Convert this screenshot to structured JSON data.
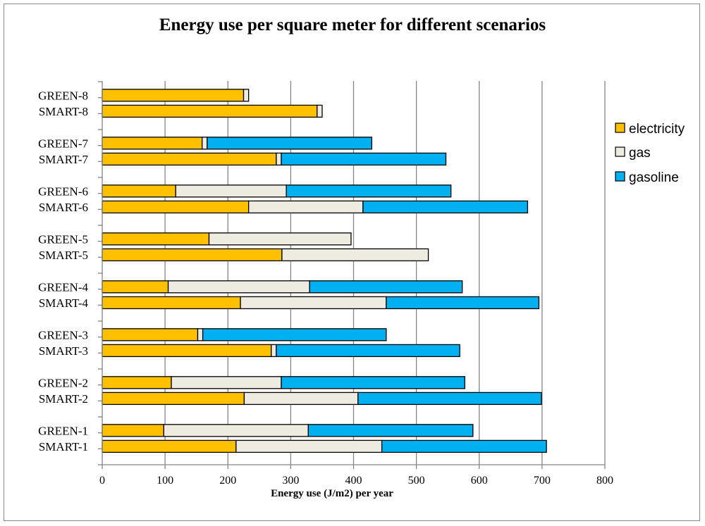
{
  "chart_data": {
    "type": "bar",
    "orientation": "horizontal",
    "stacked": true,
    "title": "Energy use per square meter for different scenarios",
    "xlabel": "Energy use (J/m2) per year",
    "ylabel": "",
    "xlim": [
      0,
      800
    ],
    "xticks": [
      "0",
      "100",
      "200",
      "300",
      "400",
      "500",
      "600",
      "700",
      "800"
    ],
    "grid": "vertical",
    "legend_position": "right",
    "categories": [
      "SMART-1",
      "GREEN-1",
      "SMART-2",
      "GREEN-2",
      "SMART-3",
      "GREEN-3",
      "SMART-4",
      "GREEN-4",
      "SMART-5",
      "GREEN-5",
      "SMART-6",
      "GREEN-6",
      "SMART-7",
      "GREEN-7",
      "SMART-8",
      "GREEN-8"
    ],
    "series": [
      {
        "name": "electricity",
        "color": "#FFC000",
        "values": [
          213,
          98,
          226,
          110,
          269,
          152,
          220,
          105,
          286,
          170,
          233,
          117,
          277,
          159,
          342,
          225
        ]
      },
      {
        "name": "gas",
        "color": "#EEECE1",
        "values": [
          232,
          230,
          181,
          175,
          8,
          8,
          232,
          225,
          233,
          226,
          182,
          176,
          8,
          8,
          8,
          8
        ]
      },
      {
        "name": "gasoline",
        "color": "#00B0F0",
        "values": [
          262,
          262,
          292,
          292,
          292,
          292,
          243,
          243,
          0,
          0,
          262,
          262,
          262,
          262,
          0,
          0
        ]
      }
    ]
  }
}
